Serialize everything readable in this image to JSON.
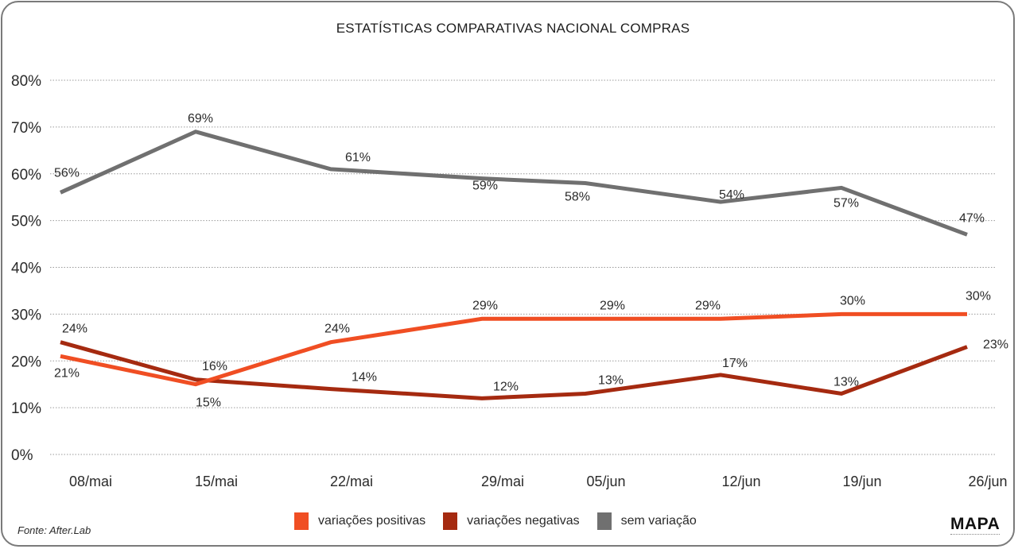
{
  "chart_data": {
    "type": "line",
    "title": "ESTATÍSTICAS COMPARATIVAS NACIONAL COMPRAS",
    "xlabel": "",
    "ylabel": "",
    "categories": [
      "08/mai",
      "15/mai",
      "22/mai",
      "29/mai",
      "05/jun",
      "12/jun",
      "19/jun",
      "26/jun"
    ],
    "ylim": [
      0,
      80
    ],
    "yticks": [
      0,
      10,
      20,
      30,
      40,
      50,
      60,
      70,
      80
    ],
    "ytick_labels": [
      "0%",
      "10%",
      "20%",
      "30%",
      "40%",
      "50%",
      "60%",
      "70%",
      "80%"
    ],
    "grid": "horizontal-dotted",
    "legend": "bottom-center",
    "series": [
      {
        "name": "variações positivas",
        "color": "#f04e23",
        "values": [
          21,
          15,
          24,
          29,
          29,
          29,
          30,
          30
        ],
        "labels": [
          "21%",
          "15%",
          "24%",
          "29%",
          "29%",
          "29%",
          "30%",
          "30%"
        ]
      },
      {
        "name": "variações negativas",
        "color": "#a52a10",
        "values": [
          24,
          16,
          14,
          12,
          13,
          17,
          13,
          23
        ],
        "labels": [
          "24%",
          "16%",
          "14%",
          "12%",
          "13%",
          "17%",
          "13%",
          "23%"
        ]
      },
      {
        "name": "sem variação",
        "color": "#707070",
        "values": [
          56,
          69,
          61,
          59,
          58,
          54,
          57,
          47
        ],
        "labels": [
          "56%",
          "69%",
          "61%",
          "59%",
          "58%",
          "54%",
          "57%",
          "47%"
        ]
      }
    ]
  },
  "footer": {
    "source": "Fonte: After.Lab",
    "brand": "MAPA"
  }
}
